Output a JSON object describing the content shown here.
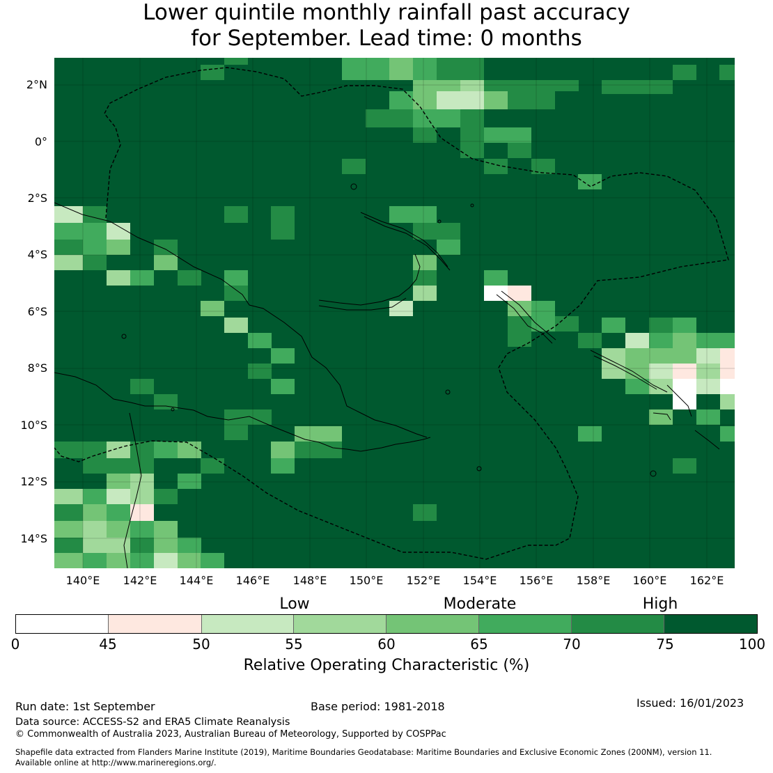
{
  "title": {
    "line1": "Lower quintile monthly rainfall past accuracy",
    "line2": "for September. Lead time: 0 months"
  },
  "map": {
    "lat_ticks": [
      "2°N",
      "0°",
      "2°S",
      "4°S",
      "6°S",
      "8°S",
      "10°S",
      "12°S",
      "14°S"
    ],
    "lon_ticks": [
      "140°E",
      "142°E",
      "144°E",
      "146°E",
      "148°E",
      "150°E",
      "152°E",
      "154°E",
      "156°E",
      "158°E",
      "160°E",
      "162°E"
    ],
    "region": "Papua New Guinea and surrounds",
    "dominant_category": "75-100"
  },
  "colorbar": {
    "categories": [
      "Low",
      "Moderate",
      "High"
    ],
    "ticks": [
      "0",
      "45",
      "50",
      "55",
      "60",
      "65",
      "70",
      "75",
      "100"
    ],
    "colors": [
      "#ffffff",
      "#fee8e0",
      "#c7e9c0",
      "#a1d99b",
      "#74c476",
      "#41ab5d",
      "#238b45",
      "#00592f"
    ],
    "label": "Relative Operating Characteristic (%)"
  },
  "footer": {
    "run_date": "Run date: 1st September",
    "base_period": "Base period: 1981-2018",
    "issued": "Issued: 16/01/2023",
    "data_source": "Data source: ACCESS-S2 and ERA5 Climate Reanalysis",
    "copyright": "© Commonwealth of Australia 2023, Australian Bureau of Meteorology, Supported by COSPPac",
    "shapefile_line1": "Shapefile data extracted from Flanders Marine Institute (2019), Maritime Boundaries Geodatabase: Maritime Boundaries and Exclusive Economic Zones (200NM), version 11.",
    "shapefile_line2": "Available online at http://www.marineregions.org/."
  }
}
